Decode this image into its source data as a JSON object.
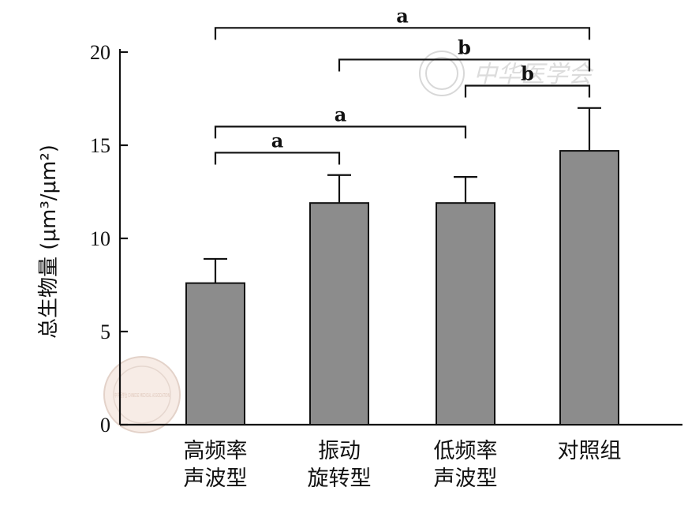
{
  "chart_data": {
    "type": "bar",
    "categories": [
      [
        "高频率",
        "声波型"
      ],
      [
        "振动",
        "旋转型"
      ],
      [
        "低频率",
        "声波型"
      ],
      [
        "对照组"
      ]
    ],
    "values": [
      7.6,
      11.9,
      11.9,
      14.7
    ],
    "errors": [
      1.3,
      1.5,
      1.4,
      2.3
    ],
    "ylabel": "总生物量 (μm³/μm²)",
    "ylim": [
      0,
      20
    ],
    "yticks": [
      0,
      5,
      10,
      15,
      20
    ],
    "grid": false,
    "bar_color": "#8c8c8c",
    "significance": [
      {
        "from": 0,
        "to": 3,
        "label": "a",
        "level": 21.3
      },
      {
        "from": 1,
        "to": 3,
        "label": "b",
        "level": 19.6
      },
      {
        "from": 2,
        "to": 3,
        "label": "b",
        "level": 18.2
      },
      {
        "from": 0,
        "to": 2,
        "label": "a",
        "level": 16.0
      },
      {
        "from": 0,
        "to": 1,
        "label": "a",
        "level": 14.6
      }
    ]
  },
  "watermarks": {
    "top_right_text": "中华医学会",
    "bottom_left_seal": "中华医学会 CHINESE MEDICAL ASSOCIATION"
  }
}
